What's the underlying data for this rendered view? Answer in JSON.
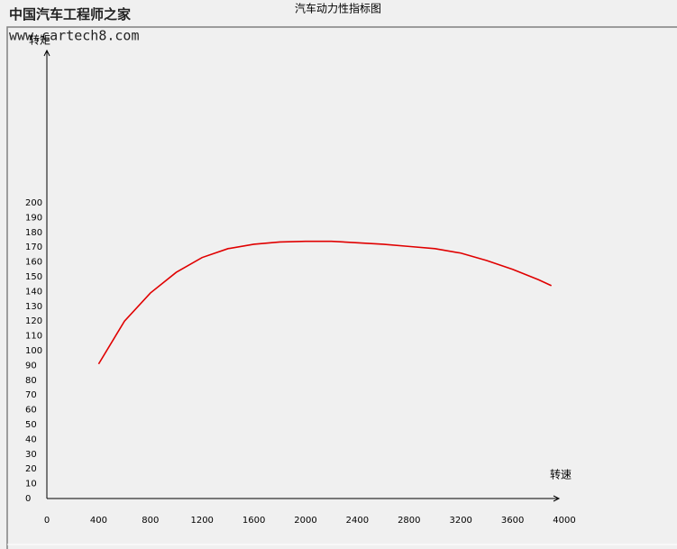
{
  "chart_data": {
    "type": "line",
    "title": "汽车动力性指标图",
    "watermark": {
      "name": "中国汽车工程师之家",
      "url": "www.cartech8.com"
    },
    "x_label": "转速",
    "y_label": "转矩",
    "x": [
      400,
      600,
      800,
      1000,
      1200,
      1400,
      1600,
      1800,
      2000,
      2200,
      2400,
      2600,
      2800,
      3000,
      3200,
      3400,
      3600,
      3800,
      3900
    ],
    "values": [
      91,
      120,
      139,
      153,
      163,
      169,
      172,
      173.5,
      174,
      174,
      173,
      172,
      170.5,
      169,
      166,
      161,
      155,
      148,
      144
    ],
    "color": "#e00000",
    "xlim": [
      0,
      4000
    ],
    "xticks": [
      0,
      400,
      800,
      1200,
      1600,
      2000,
      2400,
      2800,
      3200,
      3600,
      4000
    ],
    "ylim": [
      0,
      300
    ],
    "yticks": [
      0,
      10,
      20,
      30,
      40,
      50,
      60,
      70,
      80,
      90,
      100,
      110,
      120,
      130,
      140,
      150,
      160,
      170,
      180,
      190,
      200
    ],
    "grid": false
  }
}
